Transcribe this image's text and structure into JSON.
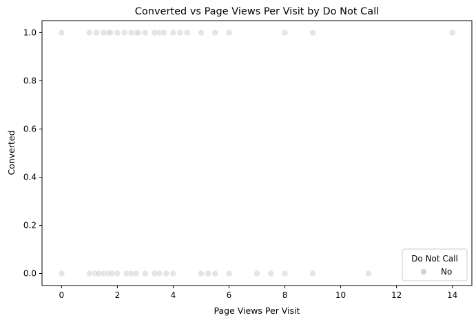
{
  "chart_data": {
    "type": "scatter",
    "title": "Converted vs Page Views Per Visit by Do Not Call",
    "xlabel": "Page Views Per Visit",
    "ylabel": "Converted",
    "xlim": [
      -0.7,
      14.7
    ],
    "ylim": [
      -0.05,
      1.05
    ],
    "xticks": [
      0,
      2,
      4,
      6,
      8,
      10,
      12,
      14
    ],
    "xtick_labels": [
      "0",
      "2",
      "4",
      "6",
      "8",
      "10",
      "12",
      "14"
    ],
    "yticks": [
      0.0,
      0.2,
      0.4,
      0.6,
      0.8,
      1.0
    ],
    "ytick_labels": [
      "0.0",
      "0.2",
      "0.4",
      "0.6",
      "0.8",
      "1.0"
    ],
    "grid": false,
    "legend": {
      "title": "Do Not Call",
      "placement": "lower-right",
      "entries": [
        "No"
      ]
    },
    "series": [
      {
        "name": "No",
        "color": "#d3d3d3",
        "points": [
          {
            "x": 0,
            "y": 1
          },
          {
            "x": 1,
            "y": 1
          },
          {
            "x": 1.25,
            "y": 1
          },
          {
            "x": 1.5,
            "y": 1
          },
          {
            "x": 1.67,
            "y": 1
          },
          {
            "x": 1.75,
            "y": 1
          },
          {
            "x": 2,
            "y": 1
          },
          {
            "x": 2.25,
            "y": 1
          },
          {
            "x": 2.5,
            "y": 1
          },
          {
            "x": 2.67,
            "y": 1
          },
          {
            "x": 2.75,
            "y": 1
          },
          {
            "x": 3,
            "y": 1
          },
          {
            "x": 3.33,
            "y": 1
          },
          {
            "x": 3.5,
            "y": 1
          },
          {
            "x": 3.67,
            "y": 1
          },
          {
            "x": 4,
            "y": 1
          },
          {
            "x": 4.25,
            "y": 1
          },
          {
            "x": 4.5,
            "y": 1
          },
          {
            "x": 5,
            "y": 1
          },
          {
            "x": 5.5,
            "y": 1
          },
          {
            "x": 6,
            "y": 1
          },
          {
            "x": 8,
            "y": 1
          },
          {
            "x": 9,
            "y": 1
          },
          {
            "x": 14,
            "y": 1
          },
          {
            "x": 0,
            "y": 0
          },
          {
            "x": 1,
            "y": 0
          },
          {
            "x": 1.2,
            "y": 0
          },
          {
            "x": 1.33,
            "y": 0
          },
          {
            "x": 1.5,
            "y": 0
          },
          {
            "x": 1.67,
            "y": 0
          },
          {
            "x": 1.8,
            "y": 0
          },
          {
            "x": 2,
            "y": 0
          },
          {
            "x": 2.33,
            "y": 0
          },
          {
            "x": 2.5,
            "y": 0
          },
          {
            "x": 2.67,
            "y": 0
          },
          {
            "x": 3,
            "y": 0
          },
          {
            "x": 3.33,
            "y": 0
          },
          {
            "x": 3.5,
            "y": 0
          },
          {
            "x": 3.75,
            "y": 0
          },
          {
            "x": 4,
            "y": 0
          },
          {
            "x": 5,
            "y": 0
          },
          {
            "x": 5.25,
            "y": 0
          },
          {
            "x": 5.5,
            "y": 0
          },
          {
            "x": 6,
            "y": 0
          },
          {
            "x": 7,
            "y": 0
          },
          {
            "x": 7.5,
            "y": 0
          },
          {
            "x": 8,
            "y": 0
          },
          {
            "x": 9,
            "y": 0
          },
          {
            "x": 11,
            "y": 0
          }
        ]
      }
    ]
  }
}
